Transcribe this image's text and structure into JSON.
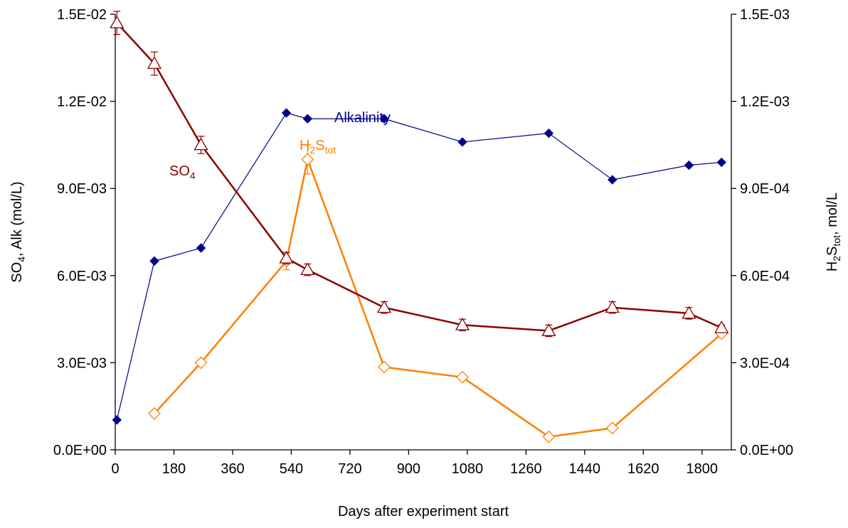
{
  "chart_data": {
    "type": "line",
    "x": {
      "label": "Days after experiment start",
      "range": [
        0,
        1890
      ],
      "ticks": [
        0,
        180,
        360,
        540,
        720,
        900,
        1080,
        1260,
        1440,
        1620,
        1800
      ],
      "tick_labels": [
        "0",
        "180",
        "360",
        "540",
        "720",
        "900",
        "1080",
        "1260",
        "1440",
        "1620",
        "1800"
      ]
    },
    "y_left": {
      "label_parts": [
        "SO",
        "4",
        ", Alk (mol/L)"
      ],
      "range": [
        0,
        0.015
      ],
      "ticks": [
        0,
        0.003,
        0.006,
        0.009,
        0.012,
        0.015
      ],
      "tick_labels": [
        "0.0E+00",
        "3.0E-03",
        "6.0E-03",
        "9.0E-03",
        "1.2E-02",
        "1.5E-02"
      ]
    },
    "y_right": {
      "label_parts": [
        "H",
        "2",
        "S",
        "tot",
        ", mol/L"
      ],
      "range": [
        0,
        0.0015
      ],
      "ticks": [
        0,
        0.0003,
        0.0006,
        0.0009,
        0.0012,
        0.0015
      ],
      "tick_labels": [
        "0.0E+00",
        "3.0E-04",
        "6.0E-04",
        "9.0E-04",
        "1.2E-03",
        "1.5E-03"
      ]
    },
    "grid": false,
    "series": [
      {
        "name": "Alkalinity",
        "label_parts": [
          "Alkalinity"
        ],
        "axis": "left",
        "color": "#00008b",
        "marker": "filled-diamond",
        "x": [
          5,
          120,
          263,
          525,
          590,
          825,
          1065,
          1330,
          1525,
          1760,
          1860
        ],
        "y": [
          0.00103,
          0.0065,
          0.00695,
          0.0116,
          0.0114,
          0.0114,
          0.0106,
          0.0109,
          0.0093,
          0.0098,
          0.0099
        ]
      },
      {
        "name": "SO4",
        "label_parts": [
          "SO",
          "4"
        ],
        "axis": "left",
        "color": "#8b0000",
        "marker": "open-triangle",
        "x": [
          5,
          120,
          263,
          525,
          590,
          825,
          1065,
          1330,
          1525,
          1760,
          1860
        ],
        "y": [
          0.0147,
          0.0133,
          0.0105,
          0.0066,
          0.0062,
          0.0049,
          0.0043,
          0.0041,
          0.0049,
          0.0047,
          0.0042
        ],
        "err": [
          0.0004,
          0.0004,
          0.0003,
          0.0002,
          0.0002,
          0.0002,
          0.0002,
          0.0002,
          0.0002,
          0.0002,
          0.0001
        ]
      },
      {
        "name": "H2Stot",
        "label_parts": [
          "H",
          "2",
          "S",
          "tot"
        ],
        "axis": "right",
        "color": "#ff7f00",
        "marker": "open-diamond",
        "x": [
          120,
          263,
          525,
          590,
          825,
          1065,
          1330,
          1525,
          1860
        ],
        "y": [
          0.000125,
          0.0003,
          0.00065,
          0.001,
          0.000285,
          0.00025,
          4.5e-05,
          7.5e-05,
          0.0004
        ],
        "err": [
          0,
          0,
          3e-05,
          5e-05,
          0,
          0,
          0,
          0,
          0
        ]
      }
    ]
  }
}
